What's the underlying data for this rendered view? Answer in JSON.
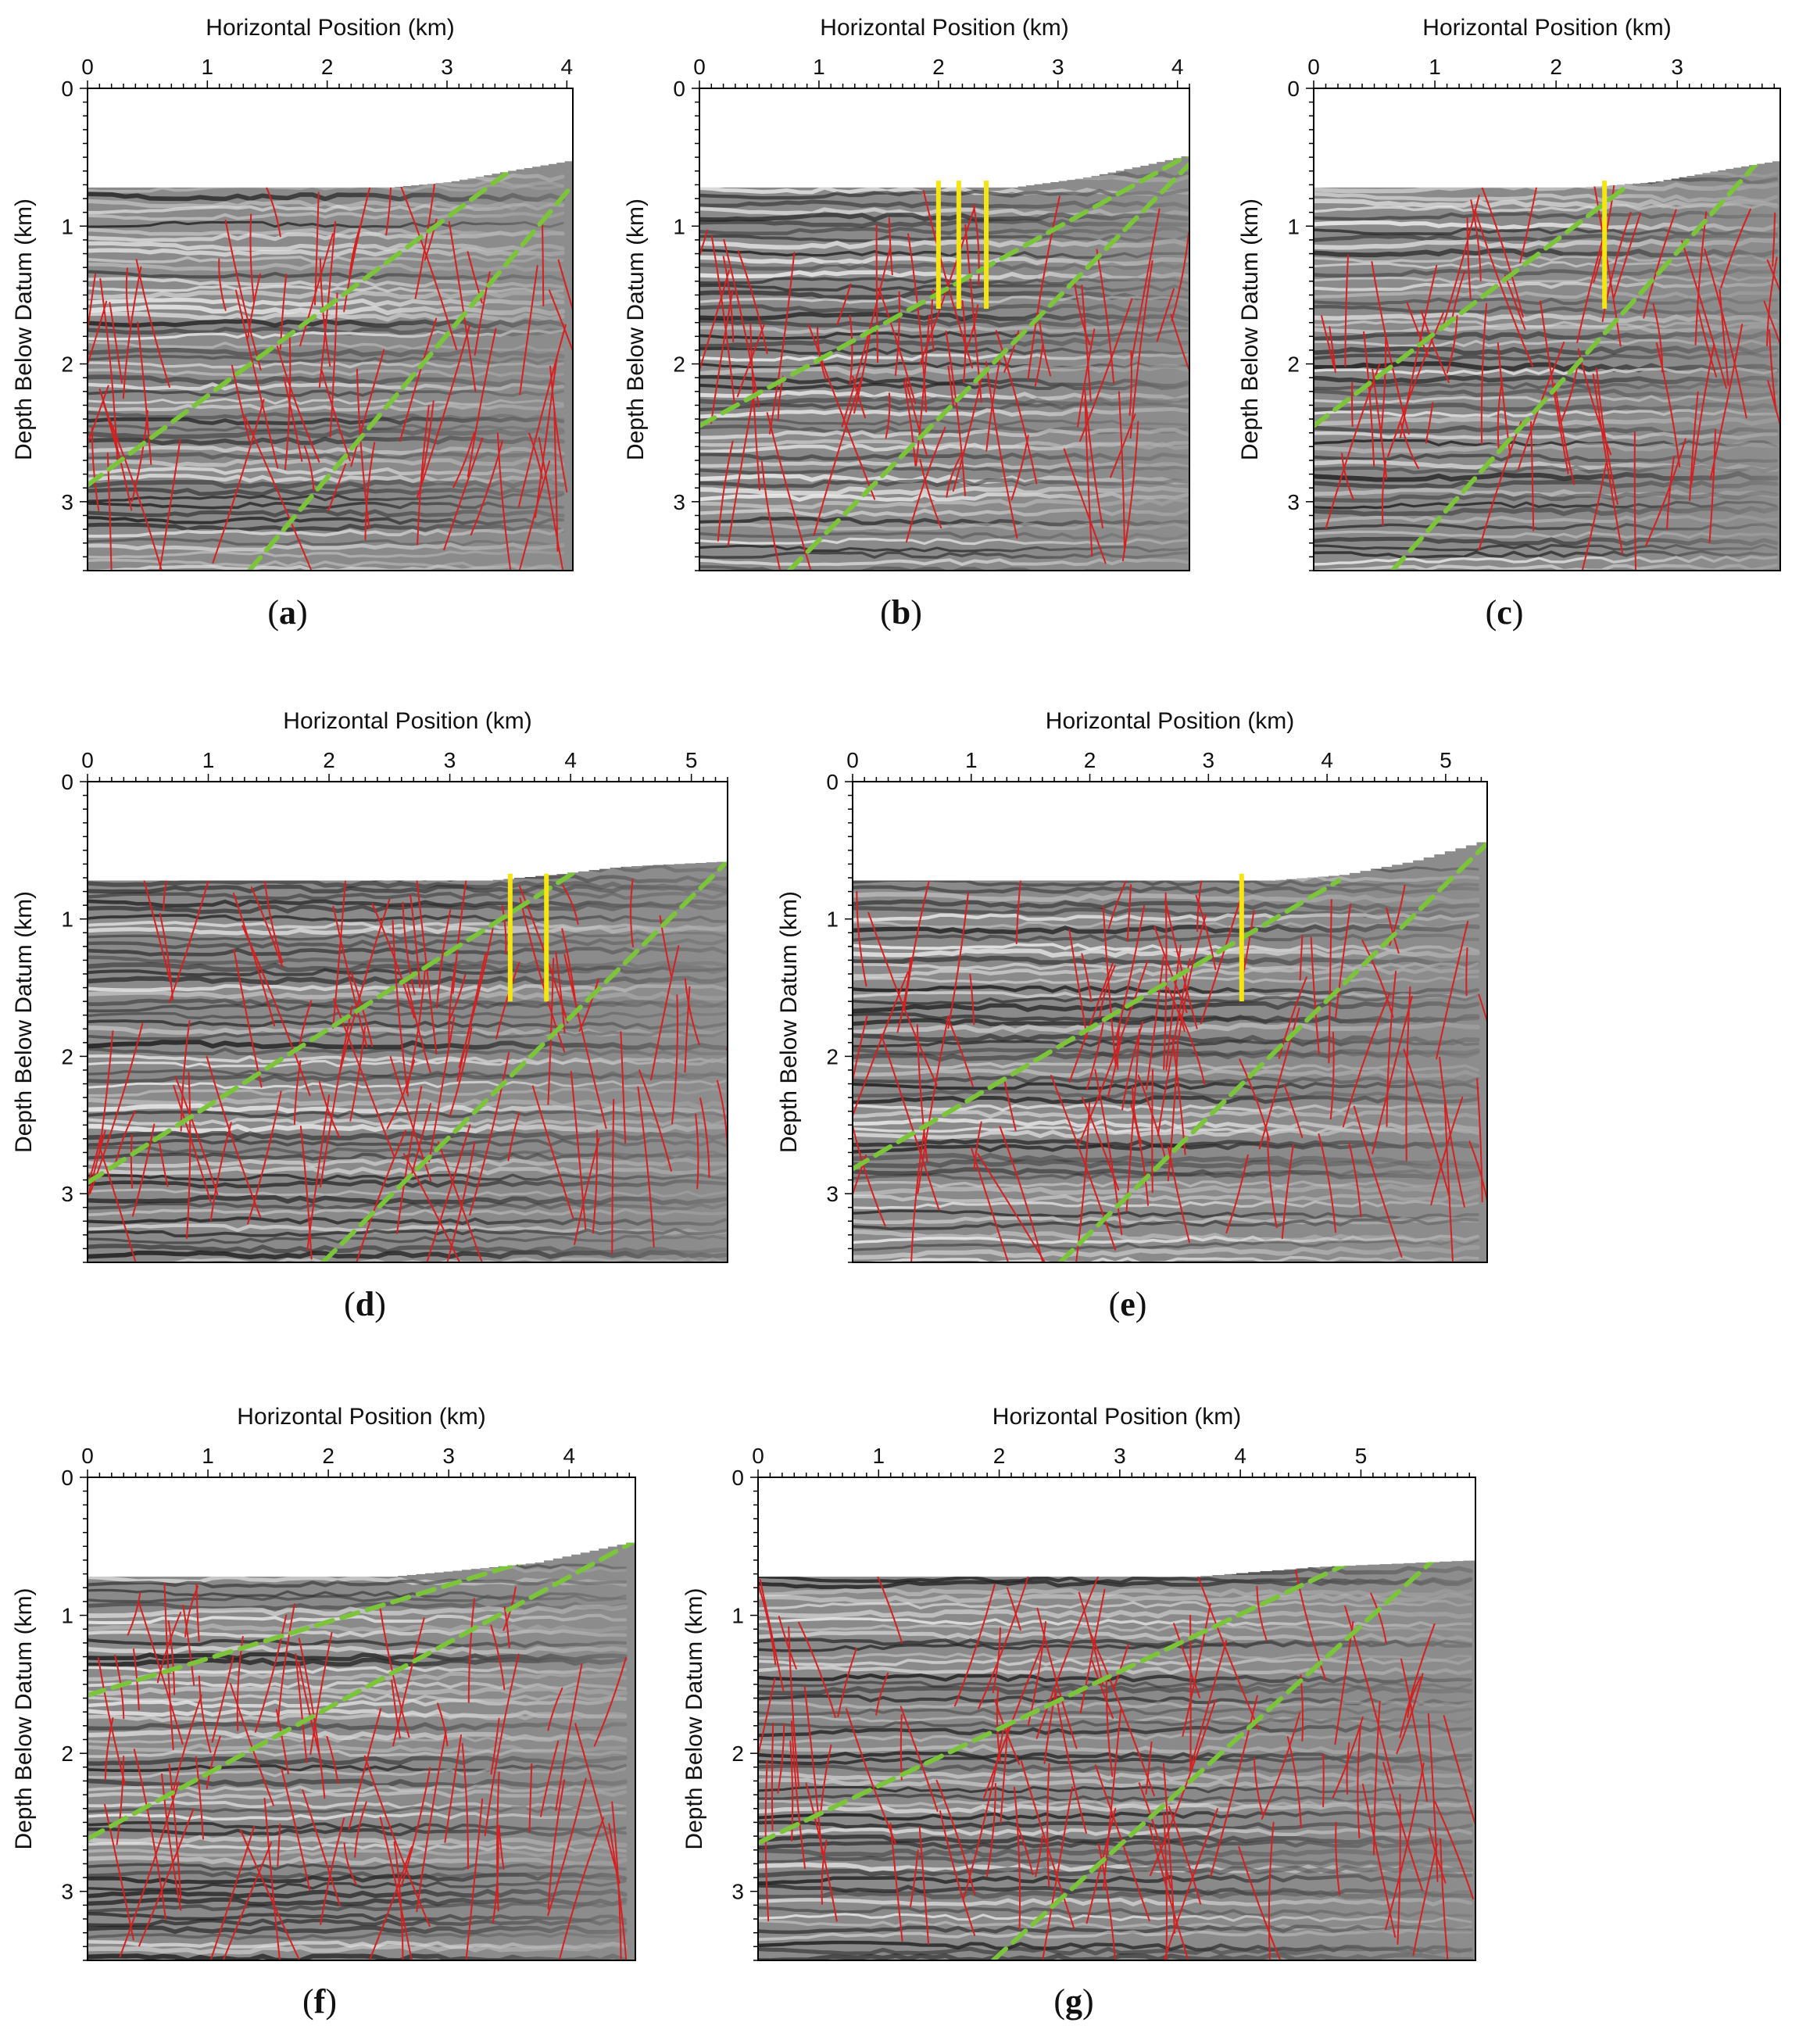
{
  "figure": {
    "x_axis_title": "Horizontal Position (km)",
    "y_axis_title": "Depth Below Datum (km)",
    "colors": {
      "faults": "#d81e1e",
      "boundary_dashed": "#7cc43a",
      "well_markers": "#f5e512",
      "seismic_background": "#8a8a8a",
      "frame": "#000000"
    }
  },
  "chart_data": [
    {
      "type": "seismic-section",
      "caption": "a",
      "xlim": [
        0,
        4.05
      ],
      "ylim": [
        3.5,
        0
      ],
      "x_ticks": [
        "0",
        "1",
        "2",
        "3",
        "4"
      ],
      "y_ticks": [
        "0",
        "1",
        "2",
        "3"
      ],
      "surface_top_km": [
        [
          0,
          0.72
        ],
        [
          2.5,
          0.72
        ],
        [
          3.0,
          0.68
        ],
        [
          3.5,
          0.6
        ],
        [
          4.05,
          0.52
        ]
      ],
      "green_lines": [
        [
          [
            0,
            2.88
          ],
          [
            3.6,
            0.55
          ]
        ],
        [
          [
            1.35,
            3.5
          ],
          [
            4.05,
            0.7
          ]
        ]
      ],
      "yellow_wells": []
    },
    {
      "type": "seismic-section",
      "caption": "b",
      "xlim": [
        0,
        4.1
      ],
      "ylim": [
        3.5,
        0
      ],
      "x_ticks": [
        "0",
        "1",
        "2",
        "3",
        "4"
      ],
      "y_ticks": [
        "0",
        "1",
        "2",
        "3"
      ],
      "surface_top_km": [
        [
          0,
          0.72
        ],
        [
          2.6,
          0.72
        ],
        [
          3.2,
          0.65
        ],
        [
          3.7,
          0.56
        ],
        [
          4.1,
          0.48
        ]
      ],
      "green_lines": [
        [
          [
            0,
            2.45
          ],
          [
            4.1,
            0.48
          ]
        ],
        [
          [
            0.75,
            3.5
          ],
          [
            4.1,
            0.55
          ]
        ]
      ],
      "yellow_wells": [
        [
          2.0,
          0.67,
          1.6
        ],
        [
          2.17,
          0.67,
          1.6
        ],
        [
          2.4,
          0.67,
          1.6
        ]
      ]
    },
    {
      "type": "seismic-section",
      "caption": "c",
      "xlim": [
        0,
        3.85
      ],
      "ylim": [
        3.5,
        0
      ],
      "x_ticks": [
        "0",
        "1",
        "2",
        "3"
      ],
      "y_ticks": [
        "0",
        "1",
        "2",
        "3"
      ],
      "surface_top_km": [
        [
          0,
          0.72
        ],
        [
          2.2,
          0.72
        ],
        [
          2.8,
          0.68
        ],
        [
          3.3,
          0.6
        ],
        [
          3.85,
          0.52
        ]
      ],
      "green_lines": [
        [
          [
            0,
            2.45
          ],
          [
            2.6,
            0.7
          ]
        ],
        [
          [
            0.65,
            3.5
          ],
          [
            3.65,
            0.55
          ]
        ]
      ],
      "yellow_wells": [
        [
          2.4,
          0.67,
          1.6
        ]
      ]
    },
    {
      "type": "seismic-section",
      "caption": "d",
      "xlim": [
        0,
        5.3
      ],
      "ylim": [
        3.5,
        0
      ],
      "x_ticks": [
        "0",
        "1",
        "2",
        "3",
        "4",
        "5"
      ],
      "y_ticks": [
        "0",
        "1",
        "2",
        "3"
      ],
      "surface_top_km": [
        [
          0,
          0.72
        ],
        [
          3.3,
          0.72
        ],
        [
          3.8,
          0.68
        ],
        [
          4.4,
          0.62
        ],
        [
          5.3,
          0.58
        ]
      ],
      "green_lines": [
        [
          [
            0,
            2.92
          ],
          [
            4.05,
            0.65
          ]
        ],
        [
          [
            1.95,
            3.5
          ],
          [
            5.3,
            0.58
          ]
        ]
      ],
      "yellow_wells": [
        [
          3.5,
          0.67,
          1.6
        ],
        [
          3.8,
          0.67,
          1.6
        ]
      ]
    },
    {
      "type": "seismic-section",
      "caption": "e",
      "xlim": [
        0,
        5.35
      ],
      "ylim": [
        3.5,
        0
      ],
      "x_ticks": [
        "0",
        "1",
        "2",
        "3",
        "4",
        "5"
      ],
      "y_ticks": [
        "0",
        "1",
        "2",
        "3"
      ],
      "surface_top_km": [
        [
          0,
          0.72
        ],
        [
          3.5,
          0.72
        ],
        [
          4.1,
          0.68
        ],
        [
          4.7,
          0.58
        ],
        [
          5.35,
          0.42
        ]
      ],
      "green_lines": [
        [
          [
            0,
            2.82
          ],
          [
            4.1,
            0.72
          ]
        ],
        [
          [
            1.75,
            3.5
          ],
          [
            5.35,
            0.45
          ]
        ]
      ],
      "yellow_wells": [
        [
          3.28,
          0.67,
          1.6
        ]
      ]
    },
    {
      "type": "seismic-section",
      "caption": "f",
      "xlim": [
        0,
        4.55
      ],
      "ylim": [
        3.5,
        0
      ],
      "x_ticks": [
        "0",
        "1",
        "2",
        "3",
        "4"
      ],
      "y_ticks": [
        "0",
        "1",
        "2",
        "3"
      ],
      "surface_top_km": [
        [
          0,
          0.72
        ],
        [
          2.5,
          0.72
        ],
        [
          3.0,
          0.68
        ],
        [
          3.7,
          0.62
        ],
        [
          4.55,
          0.46
        ]
      ],
      "green_lines": [
        [
          [
            0,
            1.58
          ],
          [
            3.6,
            0.62
          ]
        ],
        [
          [
            0,
            2.62
          ],
          [
            4.55,
            0.46
          ]
        ]
      ],
      "yellow_wells": []
    },
    {
      "type": "seismic-section",
      "caption": "g",
      "xlim": [
        0,
        5.95
      ],
      "ylim": [
        3.5,
        0
      ],
      "x_ticks": [
        "0",
        "1",
        "2",
        "3",
        "4",
        "5"
      ],
      "y_ticks": [
        "0",
        "1",
        "2",
        "3"
      ],
      "surface_top_km": [
        [
          0,
          0.72
        ],
        [
          3.6,
          0.72
        ],
        [
          4.6,
          0.65
        ],
        [
          5.95,
          0.6
        ]
      ],
      "green_lines": [
        [
          [
            0,
            2.65
          ],
          [
            4.9,
            0.62
          ]
        ],
        [
          [
            1.95,
            3.5
          ],
          [
            5.6,
            0.6
          ]
        ]
      ],
      "yellow_wells": []
    }
  ]
}
